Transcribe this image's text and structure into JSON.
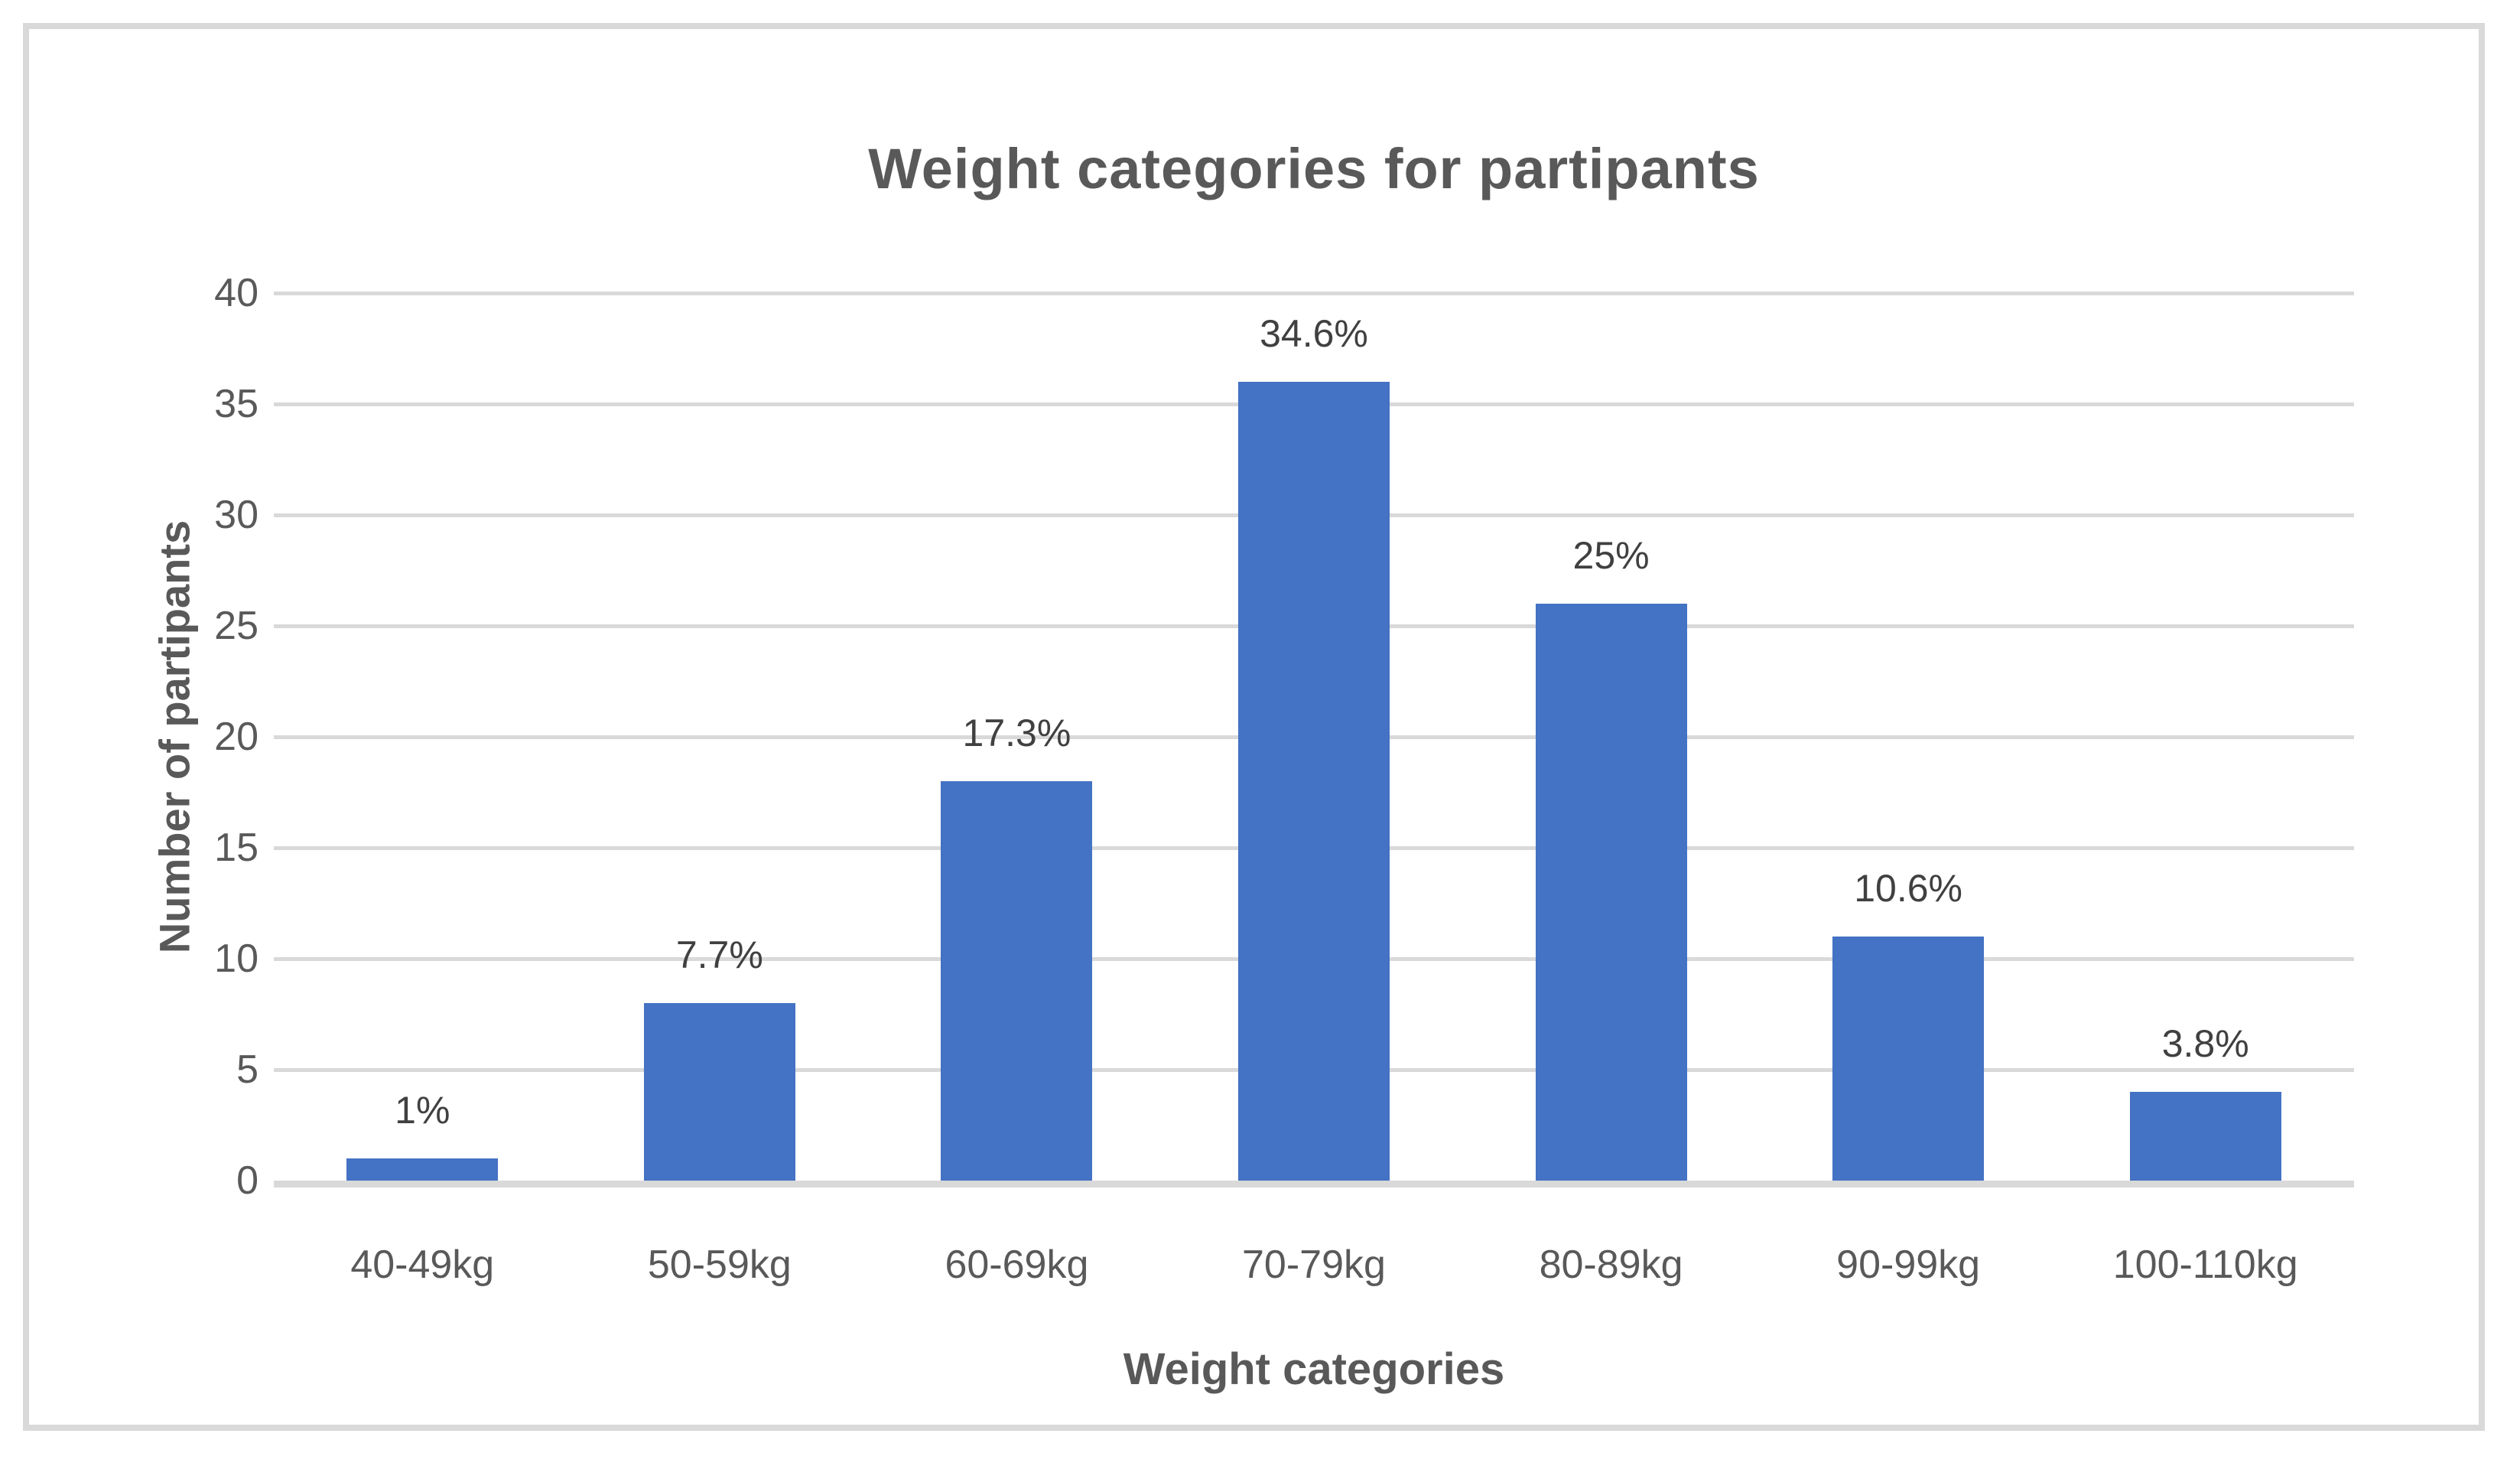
{
  "chart_data": {
    "type": "bar",
    "title": "Weight categories for partipants",
    "xlabel": "Weight categories",
    "ylabel": "Number of partipants",
    "categories": [
      "40-49kg",
      "50-59kg",
      "60-69kg",
      "70-79kg",
      "80-89kg",
      "90-99kg",
      "100-110kg"
    ],
    "values": [
      1,
      8,
      18,
      36,
      26,
      11,
      4
    ],
    "data_labels": [
      "1%",
      "7.7%",
      "17.3%",
      "34.6%",
      "25%",
      "10.6%",
      "3.8%"
    ],
    "ylim": [
      0,
      40
    ],
    "yticks": [
      0,
      5,
      10,
      15,
      20,
      25,
      30,
      35,
      40
    ],
    "grid": "horizontal-major",
    "legend": "none",
    "colors": {
      "bar": "#4472C4",
      "gridline": "#D9D9D9",
      "frame_border": "#D9D9D9",
      "axis_text": "#595959",
      "title_text": "#595959",
      "data_label_text": "#404040"
    }
  }
}
